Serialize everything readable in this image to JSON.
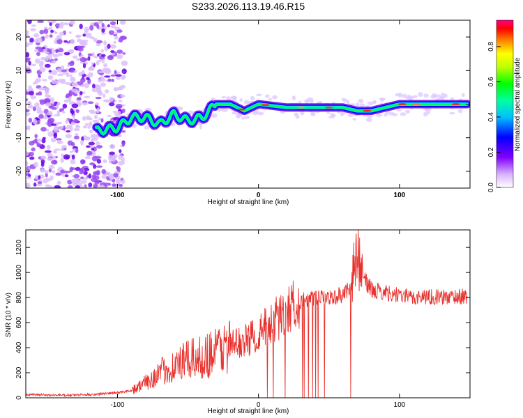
{
  "title": "S233.2026.113.19.46.R15",
  "colors": {
    "snr_line": "#e8302c",
    "colormap": [
      "#ffffff",
      "#c080ff",
      "#6000e0",
      "#0000ff",
      "#00e0ff",
      "#00ff00",
      "#ffff00",
      "#ff8000",
      "#ff0000",
      "#ff0080"
    ]
  },
  "chart_data": [
    {
      "type": "heatmap",
      "title": "",
      "xlabel": "Height of straight line (km)",
      "ylabel": "Frequency (Hz)",
      "xlim": [
        -165,
        150
      ],
      "ylim": [
        -25,
        25
      ],
      "xticks": [
        -100,
        0,
        100
      ],
      "yticks": [
        20,
        10,
        0,
        -10,
        -20
      ],
      "colorbar": {
        "label": "Normalized spectral amplitude",
        "range": [
          0,
          0.95
        ],
        "ticks": [
          0.0,
          0.2,
          0.4,
          0.6,
          0.8
        ]
      },
      "ridge": {
        "x": [
          -115,
          -100,
          -90,
          -80,
          -70,
          -60,
          -50,
          -40,
          -30,
          -20,
          -10,
          0,
          20,
          40,
          60,
          70,
          80,
          90,
          100,
          110,
          120,
          140,
          148
        ],
        "y": [
          -8,
          -7,
          -4,
          -4,
          -6,
          -3,
          -5,
          -4,
          0,
          0,
          -2,
          0,
          -1,
          -1,
          -1,
          -2,
          -2,
          -1,
          0,
          0,
          0,
          0,
          0
        ]
      }
    },
    {
      "type": "line",
      "title": "",
      "xlabel": "Height of straight line (km)",
      "ylabel": "SNR (10 * v/v)",
      "xlim": [
        -165,
        150
      ],
      "ylim": [
        0,
        1340
      ],
      "xticks": [
        -100,
        0,
        100
      ],
      "yticks": [
        0,
        200,
        400,
        600,
        800,
        1000,
        1200
      ],
      "series": [
        {
          "x": [
            -165,
            -140,
            -120,
            -100,
            -90,
            -80,
            -70,
            -60,
            -50,
            -40,
            -30,
            -20,
            -10,
            0,
            10,
            20,
            30,
            40,
            50,
            60,
            65,
            70,
            75,
            80,
            90,
            100,
            110,
            120,
            130,
            140,
            148
          ],
          "values": [
            25,
            20,
            25,
            40,
            60,
            120,
            200,
            250,
            300,
            320,
            380,
            420,
            450,
            520,
            600,
            700,
            780,
            790,
            800,
            820,
            900,
            1150,
            950,
            860,
            840,
            820,
            800,
            810,
            800,
            810,
            805
          ]
        }
      ]
    }
  ]
}
